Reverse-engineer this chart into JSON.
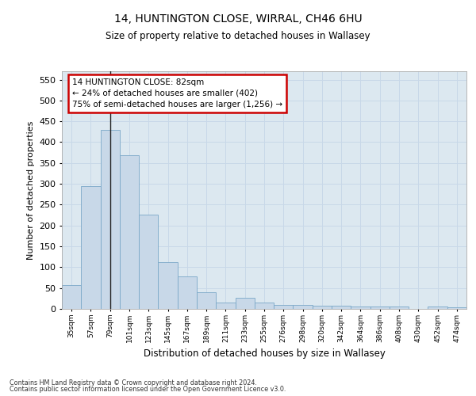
{
  "title_line1": "14, HUNTINGTON CLOSE, WIRRAL, CH46 6HU",
  "title_line2": "Size of property relative to detached houses in Wallasey",
  "xlabel": "Distribution of detached houses by size in Wallasey",
  "ylabel": "Number of detached properties",
  "categories": [
    "35sqm",
    "57sqm",
    "79sqm",
    "101sqm",
    "123sqm",
    "145sqm",
    "167sqm",
    "189sqm",
    "211sqm",
    "233sqm",
    "255sqm",
    "276sqm",
    "298sqm",
    "320sqm",
    "342sqm",
    "364sqm",
    "386sqm",
    "408sqm",
    "430sqm",
    "452sqm",
    "474sqm"
  ],
  "values": [
    57,
    295,
    430,
    368,
    226,
    113,
    77,
    39,
    16,
    27,
    16,
    10,
    10,
    7,
    8,
    5,
    5,
    5,
    0,
    5,
    4
  ],
  "bar_color": "#c8d8e8",
  "bar_edge_color": "#7aa8c8",
  "highlight_bar_index": 2,
  "highlight_line_color": "#222222",
  "annotation_box_text": "14 HUNTINGTON CLOSE: 82sqm\n← 24% of detached houses are smaller (402)\n75% of semi-detached houses are larger (1,256) →",
  "annotation_box_color": "#ffffff",
  "annotation_box_edge_color": "#cc0000",
  "ylim": [
    0,
    570
  ],
  "yticks": [
    0,
    50,
    100,
    150,
    200,
    250,
    300,
    350,
    400,
    450,
    500,
    550
  ],
  "grid_color": "#c8d8e8",
  "bg_color": "#dce8f0",
  "footer_line1": "Contains HM Land Registry data © Crown copyright and database right 2024.",
  "footer_line2": "Contains public sector information licensed under the Open Government Licence v3.0."
}
